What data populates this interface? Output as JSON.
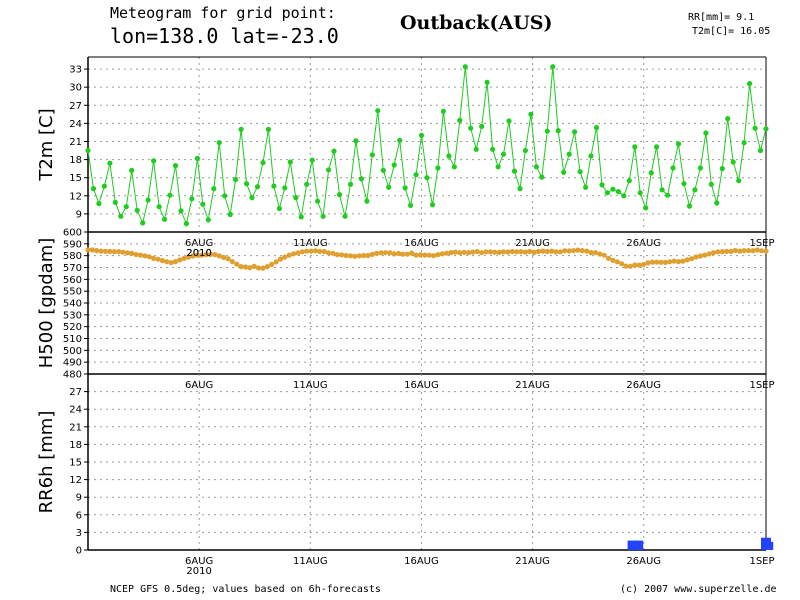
{
  "header": {
    "title_line1": "Meteogram for grid point:",
    "title_line2": "lon=138.0 lat=-23.0",
    "site": "Outback(AUS)",
    "summary_rr": "RR[mm]= 9.1",
    "summary_t2m": "T2m[C]= 16.05"
  },
  "footer": {
    "source": "NCEP GFS 0.5deg; values based on 6h-forecasts",
    "credit": "(c) 2007 www.superzelle.de"
  },
  "colors": {
    "temperature": "#1fcc1f",
    "geopotential": "#e0a030",
    "precipitation": "#2244ff",
    "grid": "#9a9a9a"
  },
  "chart_data": [
    {
      "type": "line",
      "ylabel": "T2m [C]",
      "yticks": [
        9,
        12,
        15,
        18,
        21,
        24,
        27,
        30,
        33
      ],
      "ylim": [
        6,
        35
      ],
      "xlim": [
        0,
        30.5
      ],
      "x_tick_labels": [
        "6AUG",
        "11AUG",
        "16AUG",
        "21AUG",
        "26AUG",
        "1SEP"
      ],
      "x_year_label": "2010",
      "grid": "dashed",
      "series": [
        {
          "values": [
            19.5,
            13.2,
            10.7,
            13.6,
            17.4,
            10.9,
            8.6,
            10.2,
            16.2,
            9.6,
            7.5,
            11.3,
            17.8,
            10.2,
            8.1,
            12.1,
            17.0,
            9.5,
            7.4,
            11.5,
            18.2,
            10.6,
            8.0,
            13.2,
            20.8,
            12.0,
            8.9,
            14.7,
            23.0,
            14.0,
            11.7,
            13.5,
            17.5,
            23.0,
            13.6,
            9.9,
            13.3,
            17.6,
            11.7,
            8.5,
            13.9,
            17.9,
            11.1,
            8.6,
            16.3,
            19.4,
            12.2,
            8.6,
            13.9,
            21.1,
            14.8,
            11.1,
            18.8,
            26.1,
            16.2,
            13.4,
            17.1,
            21.2,
            13.3,
            10.4,
            15.5,
            22.0,
            15.0,
            10.5,
            16.6,
            26.0,
            18.6,
            16.8,
            24.5,
            33.4,
            23.2,
            19.7,
            23.5,
            30.8,
            19.7,
            16.8,
            18.9,
            24.4,
            16.1,
            13.2,
            19.5,
            25.5,
            16.8,
            15.1,
            22.7,
            33.4,
            22.8,
            15.9,
            18.9,
            22.6,
            16.0,
            13.4,
            18.6,
            23.3,
            13.8,
            12.5,
            13.1,
            12.7,
            12.0,
            14.5,
            20.1,
            12.5,
            10.0,
            15.8,
            20.1,
            13.0,
            12.1,
            16.6,
            20.6,
            14.0,
            10.3,
            13.0,
            16.6,
            22.4,
            13.9,
            10.8,
            16.5,
            24.8,
            17.6,
            14.5,
            20.8,
            30.6,
            23.2,
            19.5,
            23.1
          ]
        }
      ]
    },
    {
      "type": "line",
      "ylabel": "H500 [gpdam]",
      "yticks": [
        480,
        490,
        500,
        510,
        520,
        530,
        540,
        550,
        560,
        570,
        580,
        590,
        600
      ],
      "ylim": [
        480,
        600
      ],
      "xlim": [
        0,
        30.5
      ],
      "x_tick_labels": [
        "6AUG",
        "11AUG",
        "16AUG",
        "21AUG",
        "26AUG",
        "1SEP"
      ],
      "x_year_label": "2010",
      "grid": "dashed",
      "series": [
        {
          "values": [
            584.9,
            584.8,
            584.3,
            583.9,
            583.6,
            583.6,
            583.4,
            583.4,
            582.9,
            582.4,
            581.9,
            581.0,
            580.5,
            579.9,
            579.1,
            577.7,
            577.0,
            575.8,
            574.9,
            574.1,
            575.0,
            576.4,
            577.8,
            578.9,
            579.7,
            580.5,
            580.4,
            580.9,
            581.0,
            581.0,
            579.8,
            578.5,
            577.4,
            575.0,
            572.9,
            570.8,
            570.4,
            569.8,
            570.9,
            569.6,
            569.5,
            570.8,
            572.6,
            574.7,
            577.1,
            578.8,
            580.4,
            581.6,
            582.3,
            583.3,
            583.8,
            583.9,
            584.1,
            583.6,
            583.5,
            582.3,
            582.0,
            580.9,
            580.7,
            580.1,
            579.9,
            579.5,
            579.9,
            580.1,
            580.1,
            581.1,
            582.0,
            582.4,
            582.5,
            582.5,
            581.5,
            581.8,
            581.2,
            581.2,
            582.2,
            580.4,
            580.7,
            580.5,
            580.4,
            580.0,
            580.9,
            581.6,
            582.1,
            582.6,
            583.0,
            582.6,
            582.8,
            582.6,
            583.0,
            583.4,
            582.5,
            583.3,
            583.2,
            582.9,
            582.8,
            583.2,
            583.1,
            583.5,
            583.3,
            583.4,
            583.0,
            583.6,
            582.8,
            583.6,
            583.9,
            583.5,
            583.9,
            583.2,
            583.3,
            584.2,
            584.0,
            584.3,
            584.7,
            584.3,
            583.9,
            582.6,
            582.6,
            581.4,
            580.4,
            577.8,
            576.1,
            574.8,
            573.2,
            571.2,
            571.0,
            572.1,
            572.0,
            572.5,
            573.9,
            574.6,
            574.6,
            574.4,
            574.3,
            574.9,
            575.4,
            575.0,
            575.4,
            576.4,
            577.4,
            578.9,
            579.7,
            580.5,
            581.5,
            582.5,
            583.3,
            583.4,
            583.6,
            583.6,
            584.4,
            583.9,
            584.3,
            584.3,
            584.2,
            584.8,
            584.1,
            583.8
          ]
        }
      ]
    },
    {
      "type": "bar",
      "ylabel": "RR6h [mm]",
      "yticks": [
        0,
        3,
        6,
        9,
        12,
        15,
        18,
        21,
        24,
        27
      ],
      "ylim": [
        0,
        30
      ],
      "xlim": [
        0,
        30.5
      ],
      "x_tick_labels": [
        "6AUG",
        "11AUG",
        "16AUG",
        "21AUG",
        "26AUG",
        "1SEP"
      ],
      "x_year_label": "2010",
      "grid": "dashed",
      "series": [
        {
          "points": [
            [
              24.5,
              1.6
            ],
            [
              24.75,
              1.6
            ],
            [
              30.5,
              2.1
            ],
            [
              30.6,
              1.4
            ]
          ]
        }
      ]
    }
  ]
}
